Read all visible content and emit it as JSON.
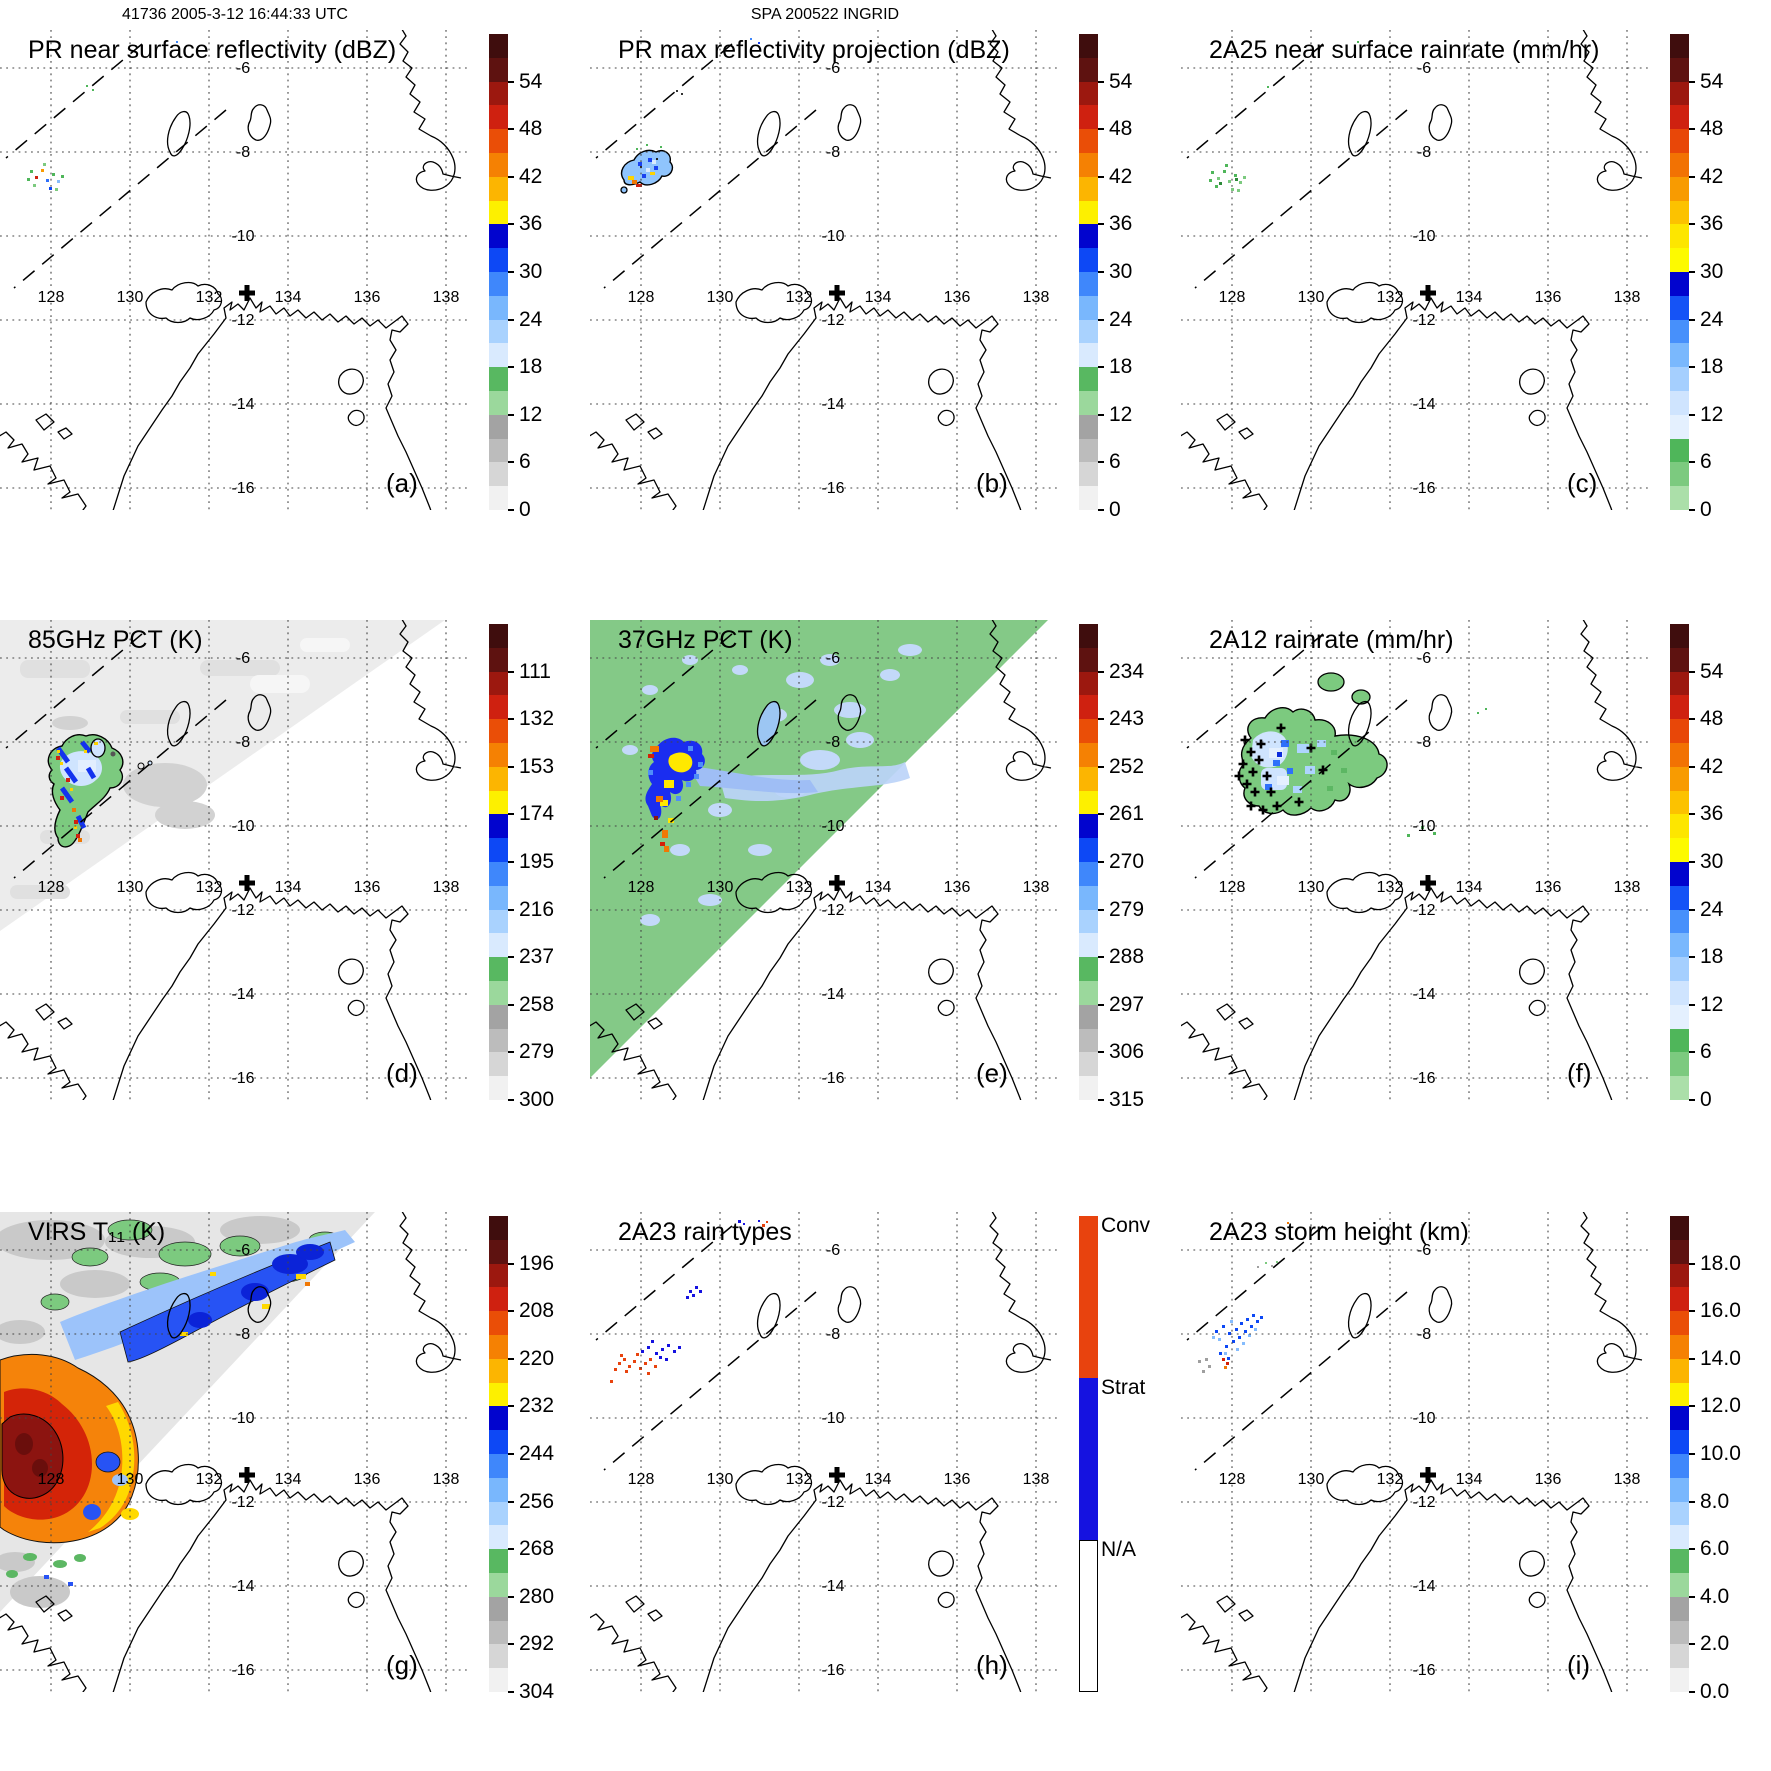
{
  "headers": {
    "left": "41736 2005-3-12 16:44:33 UTC",
    "center": "SPA 200522 INGRID"
  },
  "map": {
    "lon_labels": [
      "128",
      "130",
      "132",
      "134",
      "136",
      "138"
    ],
    "lat_labels": [
      "-6",
      "-8",
      "-10",
      "-12",
      "-14",
      "-16"
    ]
  },
  "panels": [
    {
      "letter": "(a)",
      "title": "PR near surface reflectivity (dBZ)"
    },
    {
      "letter": "(b)",
      "title": "PR max reflectivity projection (dBZ)"
    },
    {
      "letter": "(c)",
      "title": "2A25 near surface rainrate (mm/hr)"
    },
    {
      "letter": "(d)",
      "title": "85GHz PCT (K)"
    },
    {
      "letter": "(e)",
      "title": "37GHz PCT (K)"
    },
    {
      "letter": "(f)",
      "title": "2A12 rainrate (mm/hr)"
    },
    {
      "letter": "(g)",
      "title": "VIRS T₁₁ (K)"
    },
    {
      "letter": "(h)",
      "title": "2A23 rain types"
    },
    {
      "letter": "(i)",
      "title": "2A23 storm height (km)"
    }
  ],
  "colorbars": {
    "dbz": {
      "ticks": [
        "54",
        "48",
        "42",
        "36",
        "30",
        "24",
        "18",
        "12",
        "6",
        "0"
      ],
      "blocks": [
        "#3f0d0d",
        "#5e1210",
        "#9c180f",
        "#cf2110",
        "#ea4e07",
        "#f58103",
        "#fcb501",
        "#fdf000",
        "#0104ce",
        "#0d48f5",
        "#3f87fb",
        "#79b7fd",
        "#a9d2fe",
        "#d9eafe",
        "#58b861",
        "#9bd89c",
        "#a3a3a3",
        "#bcbcbc",
        "#d6d6d6",
        "#f1f1f1"
      ]
    },
    "rain": {
      "ticks": [
        "54",
        "48",
        "42",
        "36",
        "30",
        "24",
        "18",
        "12",
        "6",
        "0"
      ],
      "blocks": [
        "#3f0d0d",
        "#5e1210",
        "#9c180f",
        "#cf2110",
        "#e84708",
        "#f27203",
        "#f89b01",
        "#fcc200",
        "#fde600",
        "#fdfa00",
        "#0104ce",
        "#1553f6",
        "#4790fb",
        "#7ab8fd",
        "#a5cffe",
        "#cfe4fe",
        "#e4f0fe",
        "#4fb65a",
        "#7cca7f",
        "#abdfa9"
      ]
    },
    "pct85": {
      "ticks": [
        "111",
        "132",
        "153",
        "174",
        "195",
        "216",
        "237",
        "258",
        "279",
        "300"
      ],
      "blocks": [
        "#3f0d0d",
        "#5e1210",
        "#9c180f",
        "#cf2110",
        "#ea4e07",
        "#f58103",
        "#fcb501",
        "#fdf000",
        "#0104ce",
        "#0d48f5",
        "#3f87fb",
        "#79b7fd",
        "#a9d2fe",
        "#d9eafe",
        "#58b861",
        "#9bd89c",
        "#a3a3a3",
        "#bcbcbc",
        "#d6d6d6",
        "#f1f1f1"
      ]
    },
    "pct37": {
      "ticks": [
        "234",
        "243",
        "252",
        "261",
        "270",
        "279",
        "288",
        "297",
        "306",
        "315"
      ],
      "blocks": [
        "#3f0d0d",
        "#5e1210",
        "#9c180f",
        "#cf2110",
        "#ea4e07",
        "#f58103",
        "#fcb501",
        "#fdf000",
        "#0104ce",
        "#0d48f5",
        "#3f87fb",
        "#79b7fd",
        "#a9d2fe",
        "#d9eafe",
        "#58b861",
        "#9bd89c",
        "#a3a3a3",
        "#bcbcbc",
        "#d6d6d6",
        "#f1f1f1"
      ]
    },
    "virs": {
      "ticks": [
        "196",
        "208",
        "220",
        "232",
        "244",
        "256",
        "268",
        "280",
        "292",
        "304"
      ],
      "blocks": [
        "#3f0d0d",
        "#5e1210",
        "#9c180f",
        "#cf2110",
        "#ea4e07",
        "#f58103",
        "#fcb501",
        "#fdf000",
        "#0104ce",
        "#0d48f5",
        "#3f87fb",
        "#79b7fd",
        "#a9d2fe",
        "#d9eafe",
        "#58b861",
        "#9bd89c",
        "#a3a3a3",
        "#bcbcbc",
        "#d6d6d6",
        "#f1f1f1"
      ]
    },
    "height": {
      "ticks": [
        "18.0",
        "16.0",
        "14.0",
        "12.0",
        "10.0",
        "8.0",
        "6.0",
        "4.0",
        "2.0",
        "0.0"
      ],
      "blocks": [
        "#3f0d0d",
        "#5e1210",
        "#9c180f",
        "#cf2110",
        "#ea4e07",
        "#f58103",
        "#fcb501",
        "#fdf000",
        "#0104ce",
        "#0d48f5",
        "#3f87fb",
        "#79b7fd",
        "#a9d2fe",
        "#d9eafe",
        "#58b861",
        "#9bd89c",
        "#a3a3a3",
        "#bcbcbc",
        "#d6d6d6",
        "#f1f1f1"
      ]
    },
    "raintype": {
      "categories": [
        {
          "label": "Conv",
          "color": "#e8430e"
        },
        {
          "label": "Strat",
          "color": "#1512e0"
        },
        {
          "label": "N/A",
          "color": "#ffffff"
        }
      ],
      "fractions": [
        0,
        0.34,
        0.68
      ]
    }
  }
}
